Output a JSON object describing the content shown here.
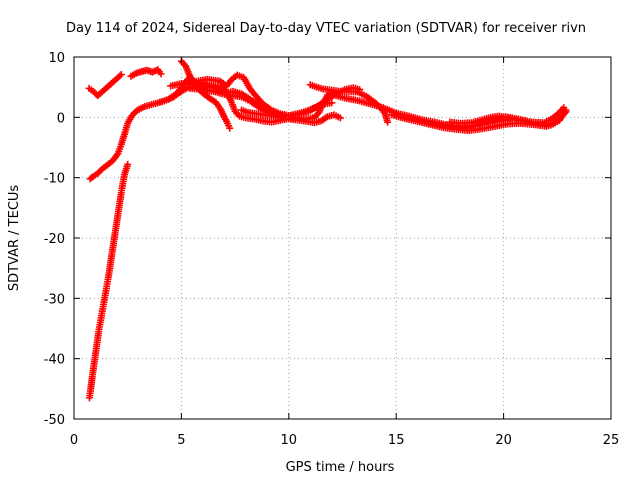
{
  "chart_data": {
    "type": "scatter",
    "title": "Day 114 of 2024, Sidereal Day-to-day VTEC variation (SDTVAR) for receiver rivn",
    "xlabel": "GPS time / hours",
    "ylabel": "SDTVAR / TECUs",
    "xlim": [
      0,
      25
    ],
    "ylim": [
      -50,
      10
    ],
    "xticks": [
      0,
      5,
      10,
      15,
      20,
      25
    ],
    "yticks": [
      -50,
      -40,
      -30,
      -20,
      -10,
      0,
      10
    ],
    "xtick_labels": [
      "0",
      "5",
      "10",
      "15",
      "20",
      "25"
    ],
    "ytick_labels": [
      "-50",
      "-40",
      "-30",
      "-20",
      "-10",
      "0",
      "10"
    ],
    "grid": true,
    "series": [
      {
        "name": "SDTVAR",
        "color": "#ff0000",
        "marker": "plus",
        "segments": [
          [
            [
              0.72,
              -46.5
            ],
            [
              0.78,
              -45.0
            ],
            [
              0.85,
              -43.0
            ],
            [
              0.95,
              -40.5
            ],
            [
              1.05,
              -38.0
            ],
            [
              1.15,
              -35.5
            ],
            [
              1.3,
              -32.5
            ],
            [
              1.45,
              -29.5
            ],
            [
              1.6,
              -26.5
            ],
            [
              1.75,
              -23.0
            ],
            [
              1.9,
              -19.5
            ],
            [
              2.05,
              -16.0
            ],
            [
              2.2,
              -12.5
            ],
            [
              2.35,
              -9.5
            ],
            [
              2.5,
              -7.8
            ]
          ],
          [
            [
              0.75,
              -10.2
            ],
            [
              0.9,
              -9.8
            ],
            [
              1.1,
              -9.3
            ],
            [
              1.3,
              -8.6
            ],
            [
              1.55,
              -7.9
            ],
            [
              1.8,
              -7.2
            ],
            [
              2.05,
              -6.0
            ],
            [
              2.2,
              -4.5
            ],
            [
              2.35,
              -2.8
            ],
            [
              2.5,
              -1.0
            ],
            [
              2.7,
              0.3
            ],
            [
              2.95,
              1.2
            ],
            [
              3.3,
              1.8
            ],
            [
              3.7,
              2.2
            ],
            [
              4.2,
              2.7
            ],
            [
              4.6,
              3.3
            ],
            [
              5.0,
              4.3
            ],
            [
              5.4,
              5.1
            ],
            [
              5.8,
              4.9
            ],
            [
              6.2,
              4.4
            ]
          ],
          [
            [
              0.7,
              4.8
            ],
            [
              0.9,
              4.3
            ],
            [
              1.1,
              3.6
            ],
            [
              1.3,
              4.2
            ],
            [
              1.55,
              5.0
            ],
            [
              1.8,
              5.8
            ],
            [
              2.05,
              6.6
            ],
            [
              2.2,
              7.1
            ]
          ],
          [
            [
              2.65,
              6.8
            ],
            [
              2.9,
              7.3
            ],
            [
              3.15,
              7.6
            ],
            [
              3.4,
              7.8
            ],
            [
              3.65,
              7.5
            ],
            [
              3.9,
              7.9
            ],
            [
              4.05,
              7.2
            ]
          ],
          [
            [
              4.0,
              2.5
            ],
            [
              4.4,
              3.0
            ],
            [
              4.8,
              4.0
            ],
            [
              5.1,
              5.5
            ],
            [
              5.35,
              6.5
            ],
            [
              5.6,
              6.0
            ],
            [
              5.9,
              5.2
            ],
            [
              6.3,
              4.9
            ],
            [
              6.7,
              5.2
            ],
            [
              7.0,
              4.6
            ],
            [
              7.3,
              2.8
            ],
            [
              7.5,
              1.0
            ],
            [
              7.7,
              0.2
            ],
            [
              8.0,
              -0.1
            ],
            [
              8.4,
              -0.3
            ],
            [
              8.8,
              -0.6
            ],
            [
              9.2,
              -0.8
            ],
            [
              9.6,
              -0.5
            ],
            [
              10.0,
              -0.2
            ],
            [
              10.4,
              -0.1
            ],
            [
              10.8,
              -0.3
            ],
            [
              11.2,
              0.0
            ],
            [
              11.4,
              0.8
            ],
            [
              11.6,
              2.3
            ],
            [
              11.8,
              3.7
            ],
            [
              12.0,
              4.2
            ]
          ],
          [
            [
              5.0,
              9.3
            ],
            [
              5.2,
              8.5
            ],
            [
              5.35,
              7.2
            ],
            [
              5.5,
              6.0
            ],
            [
              5.7,
              5.0
            ],
            [
              6.0,
              4.0
            ],
            [
              6.3,
              3.2
            ],
            [
              6.6,
              2.5
            ],
            [
              6.8,
              1.5
            ],
            [
              7.0,
              0.0
            ],
            [
              7.15,
              -1.0
            ],
            [
              7.25,
              -1.8
            ]
          ],
          [
            [
              5.0,
              5.4
            ],
            [
              5.6,
              5.9
            ],
            [
              6.2,
              6.3
            ],
            [
              6.8,
              6.0
            ],
            [
              7.1,
              5.2
            ],
            [
              7.35,
              6.3
            ],
            [
              7.6,
              7.0
            ],
            [
              7.9,
              6.6
            ],
            [
              8.2,
              4.7
            ],
            [
              8.5,
              3.4
            ],
            [
              8.8,
              2.2
            ],
            [
              9.2,
              1.2
            ],
            [
              9.6,
              0.6
            ],
            [
              10.0,
              0.3
            ],
            [
              10.4,
              0.6
            ],
            [
              10.8,
              1.0
            ],
            [
              11.2,
              1.6
            ],
            [
              11.6,
              2.2
            ],
            [
              12.0,
              2.4
            ]
          ],
          [
            [
              4.5,
              5.2
            ],
            [
              5.0,
              5.6
            ],
            [
              5.5,
              5.5
            ],
            [
              6.0,
              5.7
            ],
            [
              6.5,
              5.1
            ],
            [
              7.0,
              4.0
            ],
            [
              7.4,
              4.3
            ],
            [
              7.8,
              3.9
            ],
            [
              8.2,
              3.0
            ],
            [
              8.6,
              2.0
            ],
            [
              9.0,
              1.0
            ],
            [
              9.4,
              0.5
            ],
            [
              9.8,
              0.3
            ],
            [
              10.2,
              0.3
            ],
            [
              10.6,
              0.6
            ],
            [
              11.0,
              1.1
            ],
            [
              11.4,
              2.0
            ],
            [
              11.8,
              3.0
            ],
            [
              12.2,
              3.9
            ],
            [
              12.6,
              4.6
            ],
            [
              13.0,
              4.9
            ],
            [
              13.3,
              4.6
            ]
          ],
          [
            [
              5.4,
              4.8
            ],
            [
              6.0,
              4.6
            ],
            [
              6.6,
              4.2
            ],
            [
              7.0,
              3.8
            ],
            [
              7.4,
              3.6
            ],
            [
              7.8,
              3.4
            ],
            [
              8.2,
              2.7
            ],
            [
              8.6,
              1.7
            ],
            [
              9.0,
              0.9
            ],
            [
              9.4,
              0.5
            ],
            [
              9.8,
              0.2
            ]
          ],
          [
            [
              7.8,
              1.2
            ],
            [
              8.1,
              0.8
            ],
            [
              8.5,
              0.6
            ],
            [
              8.9,
              0.4
            ],
            [
              9.3,
              0.2
            ],
            [
              9.7,
              -0.1
            ],
            [
              10.1,
              -0.3
            ],
            [
              10.5,
              -0.5
            ],
            [
              10.9,
              -0.7
            ],
            [
              11.2,
              -0.9
            ],
            [
              11.5,
              -0.6
            ],
            [
              11.8,
              0.1
            ],
            [
              12.1,
              0.4
            ],
            [
              12.4,
              -0.1
            ]
          ],
          [
            [
              11.0,
              5.4
            ],
            [
              11.3,
              5.0
            ],
            [
              11.6,
              4.7
            ],
            [
              12.0,
              4.5
            ],
            [
              12.4,
              4.3
            ],
            [
              12.8,
              4.3
            ],
            [
              13.2,
              4.2
            ],
            [
              13.6,
              3.5
            ],
            [
              14.0,
              2.5
            ],
            [
              14.3,
              1.5
            ],
            [
              14.5,
              0.5
            ],
            [
              14.6,
              -0.8
            ]
          ],
          [
            [
              12.0,
              3.8
            ],
            [
              12.6,
              3.2
            ],
            [
              13.2,
              2.8
            ],
            [
              13.8,
              2.2
            ],
            [
              14.4,
              1.6
            ],
            [
              15.0,
              0.7
            ],
            [
              15.6,
              0.2
            ],
            [
              16.2,
              -0.4
            ],
            [
              16.8,
              -0.8
            ],
            [
              17.4,
              -1.3
            ],
            [
              18.0,
              -1.5
            ],
            [
              18.6,
              -1.4
            ],
            [
              19.2,
              -1.0
            ],
            [
              19.8,
              -0.6
            ],
            [
              20.4,
              -0.3
            ],
            [
              21.0,
              -0.6
            ],
            [
              21.6,
              -1.1
            ],
            [
              22.2,
              -1.3
            ],
            [
              22.6,
              -0.5
            ],
            [
              22.8,
              0.6
            ],
            [
              22.9,
              1.2
            ]
          ],
          [
            [
              14.8,
              0.4
            ],
            [
              15.4,
              -0.2
            ],
            [
              16.0,
              -0.7
            ],
            [
              16.6,
              -1.2
            ],
            [
              17.2,
              -1.7
            ],
            [
              17.8,
              -2.0
            ],
            [
              18.4,
              -2.2
            ],
            [
              19.0,
              -1.9
            ],
            [
              19.6,
              -1.5
            ],
            [
              20.2,
              -1.1
            ],
            [
              20.8,
              -1.0
            ],
            [
              21.4,
              -1.2
            ],
            [
              22.0,
              -1.5
            ],
            [
              22.4,
              -0.9
            ],
            [
              22.7,
              0.2
            ],
            [
              22.9,
              0.9
            ]
          ],
          [
            [
              16.5,
              -1.0
            ],
            [
              17.1,
              -1.3
            ],
            [
              17.7,
              -1.6
            ],
            [
              18.3,
              -1.8
            ],
            [
              18.9,
              -1.1
            ],
            [
              19.5,
              -0.4
            ],
            [
              20.1,
              0.1
            ],
            [
              20.7,
              -0.3
            ],
            [
              21.3,
              -0.8
            ],
            [
              21.9,
              -0.9
            ],
            [
              22.3,
              -0.1
            ],
            [
              22.6,
              0.8
            ],
            [
              22.8,
              1.6
            ]
          ],
          [
            [
              17.5,
              -0.8
            ],
            [
              18.0,
              -1.0
            ],
            [
              18.5,
              -0.9
            ],
            [
              19.0,
              -0.4
            ],
            [
              19.4,
              0.0
            ],
            [
              19.8,
              0.2
            ],
            [
              20.2,
              -0.1
            ],
            [
              20.6,
              -0.4
            ]
          ]
        ]
      }
    ]
  }
}
